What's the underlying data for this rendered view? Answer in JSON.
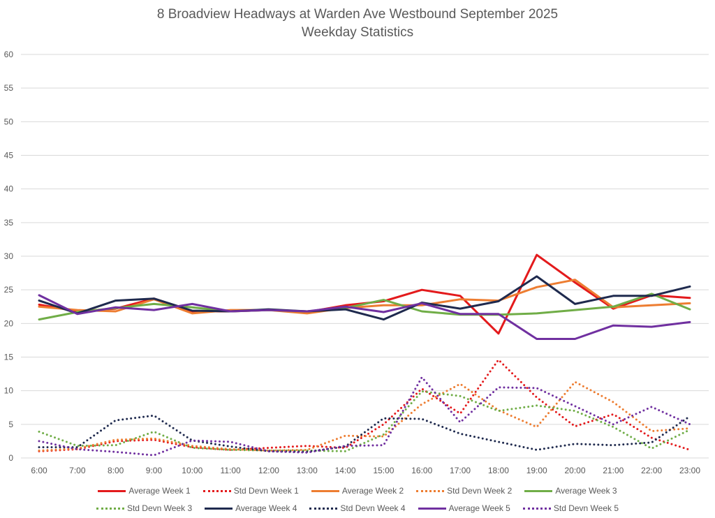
{
  "chart_data": {
    "type": "line",
    "title": "8 Broadview Headways at Warden Ave Westbound September 2025",
    "subtitle": "Weekday Statistics",
    "xlabel": "",
    "ylabel": "",
    "categories": [
      "6:00",
      "7:00",
      "8:00",
      "9:00",
      "10:00",
      "11:00",
      "12:00",
      "13:00",
      "14:00",
      "15:00",
      "16:00",
      "17:00",
      "18:00",
      "19:00",
      "20:00",
      "21:00",
      "22:00",
      "23:00"
    ],
    "ylim": [
      0,
      60
    ],
    "yticks": [
      0,
      5,
      10,
      15,
      20,
      25,
      30,
      35,
      40,
      45,
      50,
      55,
      60
    ],
    "grid": true,
    "legend_position": "bottom",
    "series": [
      {
        "name": "Average Week 1",
        "color": "#e31a1c",
        "style": "solid",
        "values": [
          22.8,
          21.8,
          22.2,
          23.7,
          21.8,
          21.8,
          22.0,
          21.7,
          22.7,
          23.3,
          25.0,
          24.1,
          18.5,
          30.2,
          26.1,
          22.2,
          24.2,
          23.8
        ]
      },
      {
        "name": "Std Devn Week 1",
        "color": "#e31a1c",
        "style": "dotted",
        "values": [
          1.0,
          1.3,
          2.5,
          2.7,
          1.6,
          1.2,
          1.5,
          1.8,
          1.5,
          5.0,
          10.3,
          6.6,
          14.6,
          9.0,
          4.7,
          6.5,
          3.0,
          1.2
        ]
      },
      {
        "name": "Average Week 2",
        "color": "#ed7d31",
        "style": "solid",
        "values": [
          22.5,
          22.0,
          21.8,
          23.6,
          21.5,
          22.0,
          22.0,
          21.5,
          22.3,
          22.7,
          22.7,
          23.6,
          23.4,
          25.4,
          26.5,
          22.4,
          22.7,
          23.0
        ]
      },
      {
        "name": "Std Devn Week 2",
        "color": "#ed7d31",
        "style": "dotted",
        "values": [
          1.1,
          1.4,
          2.7,
          2.9,
          1.8,
          1.3,
          1.1,
          1.2,
          3.3,
          3.2,
          8.0,
          11.0,
          7.1,
          4.6,
          11.3,
          8.3,
          4.0,
          4.4
        ]
      },
      {
        "name": "Average Week 3",
        "color": "#70ad47",
        "style": "solid",
        "values": [
          20.6,
          21.7,
          22.3,
          22.9,
          22.4,
          21.8,
          22.0,
          21.8,
          22.3,
          23.5,
          21.8,
          21.3,
          21.3,
          21.5,
          22.0,
          22.5,
          24.4,
          22.1
        ]
      },
      {
        "name": "Std Devn Week 3",
        "color": "#70ad47",
        "style": "dotted",
        "values": [
          3.9,
          1.8,
          1.9,
          3.9,
          1.5,
          1.2,
          1.1,
          1.1,
          1.0,
          3.5,
          9.9,
          9.2,
          7.0,
          7.8,
          7.0,
          4.6,
          1.4,
          4.2
        ]
      },
      {
        "name": "Average Week 4",
        "color": "#1f2a4e",
        "style": "solid",
        "values": [
          23.4,
          21.5,
          23.4,
          23.7,
          21.9,
          21.8,
          22.1,
          21.8,
          22.1,
          20.6,
          23.1,
          22.2,
          23.3,
          27.0,
          22.9,
          24.1,
          24.1,
          25.5
        ]
      },
      {
        "name": "Std Devn Week 4",
        "color": "#1f2a4e",
        "style": "dotted",
        "values": [
          1.6,
          1.6,
          5.6,
          6.3,
          2.6,
          1.7,
          1.0,
          0.9,
          1.7,
          5.9,
          5.8,
          3.6,
          2.4,
          1.2,
          2.1,
          1.9,
          2.3,
          6.2
        ]
      },
      {
        "name": "Average Week 5",
        "color": "#7030a0",
        "style": "solid",
        "values": [
          24.2,
          21.4,
          22.4,
          22.0,
          22.9,
          21.8,
          22.0,
          21.8,
          22.5,
          21.7,
          23.0,
          21.4,
          21.4,
          17.7,
          17.7,
          19.7,
          19.5,
          20.2
        ]
      },
      {
        "name": "Std Devn Week 5",
        "color": "#7030a0",
        "style": "dotted",
        "values": [
          2.5,
          1.3,
          0.9,
          0.4,
          2.6,
          2.4,
          1.0,
          0.8,
          1.8,
          1.9,
          12.0,
          5.3,
          10.5,
          10.4,
          7.7,
          5.0,
          7.6,
          5.0
        ]
      }
    ]
  }
}
